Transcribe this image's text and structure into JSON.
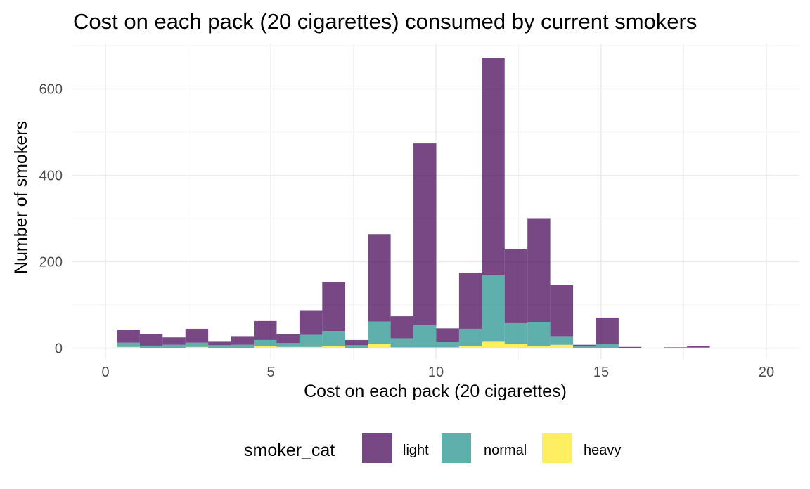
{
  "chart_data": {
    "type": "bar",
    "stacked": true,
    "title": "Cost on each pack (20 cigarettes) consumed by current smokers",
    "xlabel": "Cost on each pack (20 cigarettes)",
    "ylabel": "Number of smokers",
    "xlim": [
      -1.0,
      21.0
    ],
    "ylim": [
      -25,
      705
    ],
    "x_ticks": [
      0,
      5,
      10,
      15,
      20
    ],
    "x_tick_labels": [
      "0",
      "5",
      "10",
      "15",
      "20"
    ],
    "y_ticks": [
      0,
      200,
      400,
      600
    ],
    "y_tick_labels": [
      "0",
      "200",
      "400",
      "600"
    ],
    "grid": true,
    "bin_width": 0.69,
    "bin_starts": [
      0.35,
      1.04,
      1.73,
      2.42,
      3.11,
      3.8,
      4.49,
      5.18,
      5.87,
      6.56,
      7.25,
      7.94,
      8.63,
      9.32,
      10.01,
      10.7,
      11.39,
      12.08,
      12.77,
      13.46,
      14.15,
      14.84,
      15.53,
      16.22,
      16.91,
      17.6
    ],
    "series": [
      {
        "name": "heavy",
        "color": "#FDE725",
        "values": [
          3,
          1,
          1,
          3,
          1,
          1,
          5,
          3,
          3,
          5,
          1,
          10,
          2,
          2,
          2,
          5,
          15,
          10,
          5,
          8,
          1,
          1,
          0,
          0,
          0,
          0
        ]
      },
      {
        "name": "normal",
        "color": "#21908C",
        "values": [
          10,
          5,
          7,
          10,
          6,
          7,
          14,
          9,
          28,
          35,
          6,
          52,
          21,
          51,
          12,
          40,
          155,
          48,
          55,
          20,
          3,
          8,
          0,
          0,
          0,
          2
        ]
      },
      {
        "name": "light",
        "color": "#440154",
        "values": [
          30,
          27,
          17,
          32,
          8,
          20,
          44,
          20,
          57,
          113,
          12,
          202,
          51,
          421,
          32,
          130,
          502,
          171,
          241,
          118,
          4,
          62,
          3,
          0,
          2,
          3
        ]
      }
    ],
    "legend": {
      "title": "smoker_cat",
      "position": "bottom",
      "items": [
        {
          "label": "light",
          "color": "#440154"
        },
        {
          "label": "normal",
          "color": "#21908C"
        },
        {
          "label": "heavy",
          "color": "#FDE725"
        }
      ]
    }
  }
}
